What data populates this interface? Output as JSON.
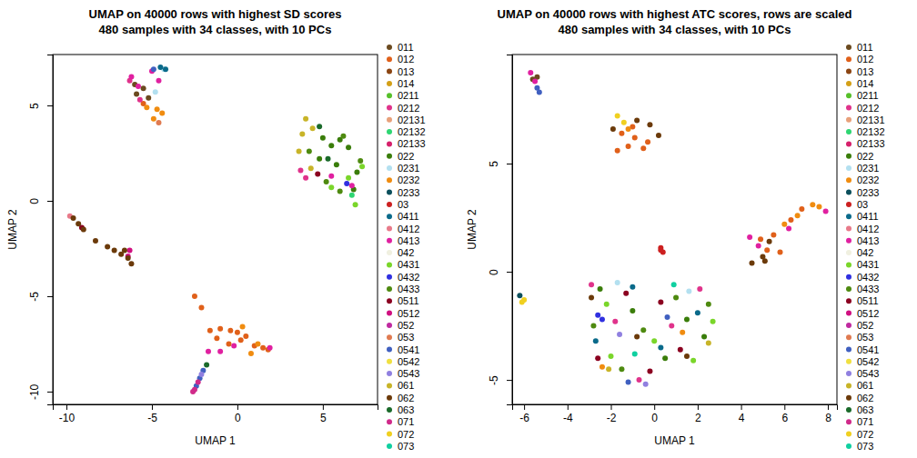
{
  "chart_data": [
    {
      "type": "scatter",
      "title": "UMAP on 40000 rows with highest SD scores",
      "subtitle": "480 samples with 34 classes, with 10 PCs",
      "x_label": "UMAP 1",
      "y_label": "UMAP 2",
      "xlim": [
        -10.8,
        8.2
      ],
      "ylim": [
        -10.67,
        7.67
      ],
      "xticks": [
        -10,
        -5,
        0,
        5
      ],
      "yticks": [
        -10,
        -5,
        0,
        5
      ],
      "series": [
        {
          "name": "011",
          "color": "#6b4a1f",
          "x": [
            -5.9,
            -5.5,
            -6.0,
            -5.2
          ],
          "values": [
            5.6,
            5.9,
            6.1,
            5.4
          ]
        },
        {
          "name": "012",
          "color": "#e0601a",
          "x": [
            -5.5,
            -2.5,
            -2.1,
            -1.6,
            -1.0,
            -0.4,
            0.0,
            0.5,
            1.0,
            1.5,
            1.8,
            -0.5,
            0.2,
            -1.2
          ],
          "values": [
            5.1,
            -5.0,
            -5.6,
            -6.8,
            -6.7,
            -6.8,
            -6.9,
            -7.1,
            -7.6,
            -7.7,
            -7.8,
            -7.5,
            -7.3,
            -7.2
          ]
        },
        {
          "name": "013",
          "color": "#8b4513",
          "x": [],
          "values": []
        },
        {
          "name": "014",
          "color": "#d4a017",
          "x": [],
          "values": []
        },
        {
          "name": "0211",
          "color": "#56c02a",
          "x": [],
          "values": []
        },
        {
          "name": "0212",
          "color": "#e0338b",
          "x": [
            -6.3,
            -5.7,
            4.0,
            3.7
          ],
          "values": [
            6.3,
            5.3,
            1.2,
            1.6
          ]
        },
        {
          "name": "02131",
          "color": "#e8a07a",
          "x": [],
          "values": []
        },
        {
          "name": "02132",
          "color": "#2ed672",
          "x": [
            6.7
          ],
          "values": [
            0.3
          ]
        },
        {
          "name": "02133",
          "color": "#d6206b",
          "x": [],
          "values": []
        },
        {
          "name": "022",
          "color": "#3a7d0a",
          "x": [
            5.0,
            5.5,
            6.0,
            6.5,
            7.0,
            6.8,
            5.8,
            4.8
          ],
          "values": [
            3.3,
            2.9,
            3.2,
            2.8,
            1.5,
            0.6,
            1.9,
            2.2
          ]
        },
        {
          "name": "0231",
          "color": "#b3e0f0",
          "x": [
            -4.8,
            -4.3
          ],
          "values": [
            5.7,
            6.9
          ]
        },
        {
          "name": "0232",
          "color": "#f08c10",
          "x": [
            -4.7,
            -4.4,
            -4.9,
            -5.3,
            0.8,
            1.2,
            0.3
          ],
          "values": [
            4.8,
            4.6,
            4.3,
            4.9,
            -8.0,
            -7.5,
            -6.6
          ]
        },
        {
          "name": "0233",
          "color": "#0b4f5c",
          "x": [],
          "values": []
        },
        {
          "name": "03",
          "color": "#cc2020",
          "x": [],
          "values": []
        },
        {
          "name": "0411",
          "color": "#0a6a8a",
          "x": [
            -4.5,
            -4.2
          ],
          "values": [
            7.0,
            6.9
          ]
        },
        {
          "name": "0412",
          "color": "#e87a8a",
          "x": [
            -9.8
          ],
          "values": [
            -0.8
          ]
        },
        {
          "name": "0413",
          "color": "#e020a0",
          "x": [
            -6.2,
            -5.8,
            -5.0,
            -4.6,
            5.5,
            6.7,
            -1.0,
            -1.7,
            -0.2,
            1.9
          ],
          "values": [
            6.5,
            6.0,
            6.8,
            6.3,
            1.3,
            0.8,
            -7.9,
            -7.9,
            -7.6,
            -7.7
          ]
        },
        {
          "name": "042",
          "color": "#f0f0e0",
          "x": [],
          "values": []
        },
        {
          "name": "0431",
          "color": "#7ad62a",
          "x": [
            7.3,
            6.5,
            5.5,
            6.9
          ],
          "values": [
            1.8,
            1.2,
            0.7,
            -0.2
          ]
        },
        {
          "name": "0432",
          "color": "#3030e0",
          "x": [
            6.4
          ],
          "values": [
            0.9
          ]
        },
        {
          "name": "0433",
          "color": "#4e8a10",
          "x": [
            6.2,
            5.2,
            6.0,
            7.2,
            4.2
          ],
          "values": [
            3.4,
            1.0,
            0.5,
            2.1,
            2.6
          ]
        },
        {
          "name": "0511",
          "color": "#8b0020",
          "x": [
            4.7,
            -9.1
          ],
          "values": [
            1.4,
            -1.4
          ]
        },
        {
          "name": "0512",
          "color": "#d01080",
          "x": [
            -6.3,
            -6.4
          ],
          "values": [
            -2.6,
            -2.9
          ]
        },
        {
          "name": "052",
          "color": "#c02aa0",
          "x": [],
          "values": []
        },
        {
          "name": "053",
          "color": "#e07a50",
          "x": [
            -4.6
          ],
          "values": [
            4.1
          ]
        },
        {
          "name": "0541",
          "color": "#4060c0",
          "x": [
            -4.9,
            -2.2,
            -2.4,
            -2.0
          ],
          "values": [
            6.9,
            -9.3,
            -9.7,
            -8.9
          ]
        },
        {
          "name": "0542",
          "color": "#f0e040",
          "x": [],
          "values": []
        },
        {
          "name": "0543",
          "color": "#9080e0",
          "x": [
            -2.1
          ],
          "values": [
            -9.1
          ]
        },
        {
          "name": "061",
          "color": "#c8b428",
          "x": [
            4.0,
            3.8,
            4.4,
            3.6,
            4.3
          ],
          "values": [
            4.3,
            3.5,
            3.8,
            2.6,
            1.7
          ]
        },
        {
          "name": "062",
          "color": "#6b3a0a",
          "x": [
            -9.6,
            -9.3,
            -9.0,
            -8.3,
            -7.6,
            -7.2,
            -6.8,
            -6.4,
            -6.2,
            -6.6
          ],
          "values": [
            -0.9,
            -1.2,
            -1.5,
            -2.1,
            -2.4,
            -2.6,
            -2.8,
            -3.0,
            -3.3,
            -2.6
          ]
        },
        {
          "name": "063",
          "color": "#1a6a2a",
          "x": [
            4.8,
            5.3,
            -1.8
          ],
          "values": [
            3.9,
            2.2,
            -8.6
          ]
        },
        {
          "name": "071",
          "color": "#d02a8a",
          "x": [
            -2.5,
            -2.3,
            -2.6
          ],
          "values": [
            -9.9,
            -9.5,
            -10.0
          ]
        },
        {
          "name": "072",
          "color": "#f0d020",
          "x": [],
          "values": []
        },
        {
          "name": "073",
          "color": "#10d0a0",
          "x": [],
          "values": []
        }
      ]
    },
    {
      "type": "scatter",
      "title": "UMAP on 40000 rows with highest ATC scores, rows are scaled",
      "subtitle": "480 samples with 34 classes, with 10 PCs",
      "x_label": "UMAP 1",
      "y_label": "UMAP 2",
      "xlim": [
        -6.55,
        8.42
      ],
      "ylim": [
        -6.13,
        10.04
      ],
      "xticks": [
        -6,
        -4,
        -2,
        0,
        2,
        4,
        6,
        8
      ],
      "yticks": [
        -5,
        0,
        5
      ],
      "series": [
        {
          "name": "011",
          "color": "#6b4a1f",
          "x": [
            -5.4,
            -5.6
          ],
          "values": [
            9.0,
            8.9
          ]
        },
        {
          "name": "012",
          "color": "#e0601a",
          "x": [
            -1.7,
            -1.2,
            -0.9,
            -0.5,
            -1.5,
            -1.0,
            -0.3,
            5.5,
            6.3,
            5.2,
            4.9,
            5.8,
            6.8
          ],
          "values": [
            5.6,
            5.8,
            6.2,
            5.7,
            6.4,
            6.7,
            6.0,
            1.7,
            2.4,
            1.0,
            1.5,
            0.9,
            2.9
          ]
        },
        {
          "name": "013",
          "color": "#8b4513",
          "x": [],
          "values": []
        },
        {
          "name": "014",
          "color": "#d4a017",
          "x": [],
          "values": []
        },
        {
          "name": "0211",
          "color": "#56c02a",
          "x": [],
          "values": []
        },
        {
          "name": "0212",
          "color": "#e0338b",
          "x": [
            -2.9,
            -1.8,
            0.8,
            2.1,
            -0.7
          ],
          "values": [
            -0.6,
            -2.3,
            -2.5,
            -0.8,
            -5.0
          ]
        },
        {
          "name": "02131",
          "color": "#e8a07a",
          "x": [],
          "values": []
        },
        {
          "name": "02132",
          "color": "#2ed672",
          "x": [],
          "values": []
        },
        {
          "name": "02133",
          "color": "#d6206b",
          "x": [],
          "values": []
        },
        {
          "name": "022",
          "color": "#3a7d0a",
          "x": [
            -2.5,
            -1.0,
            0.5,
            1.5,
            2.3
          ],
          "values": [
            -0.8,
            -1.8,
            -4.0,
            -2.2,
            -3.0
          ]
        },
        {
          "name": "0231",
          "color": "#b3e0f0",
          "x": [
            -1.7,
            1.6
          ],
          "values": [
            -0.5,
            -0.9
          ]
        },
        {
          "name": "0232",
          "color": "#f08c10",
          "x": [
            -1.2,
            7.3,
            7.6,
            6.6,
            6.0,
            -2.4,
            1.3
          ],
          "values": [
            6.6,
            3.1,
            3.0,
            2.6,
            2.2,
            -4.4,
            -2.8
          ]
        },
        {
          "name": "0233",
          "color": "#0b4f5c",
          "x": [
            -6.2
          ],
          "values": [
            -1.1
          ]
        },
        {
          "name": "03",
          "color": "#cc2020",
          "x": [
            0.3,
            0.4,
            0.3
          ],
          "values": [
            1.1,
            0.9,
            1.0
          ]
        },
        {
          "name": "0411",
          "color": "#0a6a8a",
          "x": [
            -1.0,
            0.3,
            -2.7,
            2.0
          ],
          "values": [
            -0.7,
            -3.5,
            -3.2,
            -1.9
          ]
        },
        {
          "name": "0412",
          "color": "#e87a8a",
          "x": [],
          "values": []
        },
        {
          "name": "0413",
          "color": "#e020a0",
          "x": [
            -5.7,
            -5.5,
            4.4,
            4.8,
            7.9,
            6.2
          ],
          "values": [
            9.2,
            8.8,
            1.6,
            1.2,
            2.8,
            2.0
          ]
        },
        {
          "name": "042",
          "color": "#f0f0e0",
          "x": [],
          "values": []
        },
        {
          "name": "0431",
          "color": "#7ad62a",
          "x": [
            -2.2,
            0.0,
            1.8,
            -2.0,
            2.7
          ],
          "values": [
            -1.5,
            -3.2,
            -4.1,
            -3.9,
            -2.3
          ]
        },
        {
          "name": "0432",
          "color": "#3030e0",
          "x": [
            -2.6,
            -2.4
          ],
          "values": [
            -2.0,
            -2.2
          ]
        },
        {
          "name": "0433",
          "color": "#4e8a10",
          "x": [
            -2.8,
            -0.5,
            1.0,
            2.5,
            -1.5
          ],
          "values": [
            -2.5,
            -2.7,
            -1.2,
            -1.5,
            -4.5
          ]
        },
        {
          "name": "0511",
          "color": "#8b0020",
          "x": [
            -1.3,
            0.3,
            -2.6,
            1.2,
            -0.2
          ],
          "values": [
            -1.0,
            -1.4,
            -4.0,
            -3.6,
            -4.6
          ]
        },
        {
          "name": "0512",
          "color": "#d01080",
          "x": [],
          "values": []
        },
        {
          "name": "052",
          "color": "#c02aa0",
          "x": [],
          "values": []
        },
        {
          "name": "053",
          "color": "#e07a50",
          "x": [],
          "values": []
        },
        {
          "name": "0541",
          "color": "#4060c0",
          "x": [
            -5.3,
            -5.4,
            -1.2,
            0.6
          ],
          "values": [
            8.3,
            8.5,
            -5.1,
            -2.1
          ]
        },
        {
          "name": "0542",
          "color": "#f0e040",
          "x": [],
          "values": []
        },
        {
          "name": "0543",
          "color": "#9080e0",
          "x": [
            -0.4,
            -1.6
          ],
          "values": [
            -5.2,
            -2.9
          ]
        },
        {
          "name": "061",
          "color": "#c8b428",
          "x": [
            -2.1,
            2.5
          ],
          "values": [
            -4.5,
            -3.3
          ]
        },
        {
          "name": "062",
          "color": "#6b3a0a",
          "x": [
            -0.8,
            -0.2,
            0.2,
            -1.9,
            5.0,
            4.5,
            5.3,
            5.1,
            -0.8,
            1.5,
            -2.9
          ],
          "values": [
            7.0,
            6.8,
            6.3,
            6.6,
            0.7,
            0.4,
            1.4,
            0.5,
            -3.0,
            -3.9,
            -1.2
          ]
        },
        {
          "name": "063",
          "color": "#1a6a2a",
          "x": [],
          "values": []
        },
        {
          "name": "071",
          "color": "#d02a8a",
          "x": [],
          "values": []
        },
        {
          "name": "072",
          "color": "#f0d020",
          "x": [
            -1.7,
            -1.4,
            -6.1,
            -6.0
          ],
          "values": [
            7.2,
            6.9,
            -1.4,
            -1.3
          ]
        },
        {
          "name": "073",
          "color": "#10d0a0",
          "x": [
            -0.9,
            0.9
          ],
          "values": [
            -3.8,
            -0.6
          ]
        }
      ]
    }
  ]
}
